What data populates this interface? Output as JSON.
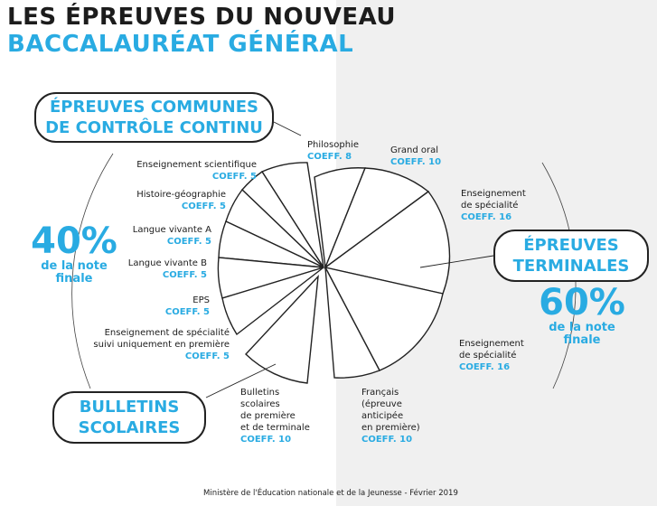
{
  "title": {
    "line1": "LES ÉPREUVES DU NOUVEAU",
    "line2": "BACCALAURÉAT GÉNÉRAL"
  },
  "boxes": {
    "ecc": [
      "ÉPREUVES COMMUNES",
      "DE CONTRÔLE CONTINU"
    ],
    "bulletins": [
      "BULLETINS",
      "SCOLAIRES"
    ],
    "terminales": [
      "ÉPREUVES",
      "TERMINALES"
    ]
  },
  "percent_left": {
    "value": "40%",
    "caption": [
      "de la note",
      "finale"
    ]
  },
  "percent_right": {
    "value": "60%",
    "caption": [
      "de la note",
      "finale"
    ]
  },
  "segments_left": [
    {
      "name": "Enseignement scientifique",
      "coeff": "COEFF. 5"
    },
    {
      "name": "Histoire-géographie",
      "coeff": "COEFF. 5"
    },
    {
      "name": "Langue vivante A",
      "coeff": "COEFF. 5"
    },
    {
      "name": "Langue vivante B",
      "coeff": "COEFF. 5"
    },
    {
      "name": "EPS",
      "coeff": "COEFF. 5"
    },
    {
      "name": [
        "Enseignement de spécialité",
        "suivi uniquement en première"
      ],
      "coeff": "COEFF. 5"
    }
  ],
  "bulletins_segment": {
    "name": [
      "Bulletins",
      "scolaires",
      "de première",
      "et de terminale"
    ],
    "coeff": "COEFF. 10"
  },
  "segments_right": [
    {
      "name": [
        "Philosophie"
      ],
      "coeff": "COEFF. 8"
    },
    {
      "name": [
        "Grand oral"
      ],
      "coeff": "COEFF. 10"
    },
    {
      "name": [
        "Enseignement",
        "de spécialité"
      ],
      "coeff": "COEFF. 16"
    },
    {
      "name": [
        "Enseignement",
        "de spécialité"
      ],
      "coeff": "COEFF. 16"
    },
    {
      "name": [
        "Français",
        "(épreuve",
        "anticipée",
        "en première)"
      ],
      "coeff": "COEFF. 10"
    }
  ],
  "footer": "Ministère de l'Éducation nationale et de la Jeunesse - Février 2019",
  "colors": {
    "accent": "#29abe2",
    "ink": "#1c1c1c",
    "panel": "#f0f0f0"
  }
}
